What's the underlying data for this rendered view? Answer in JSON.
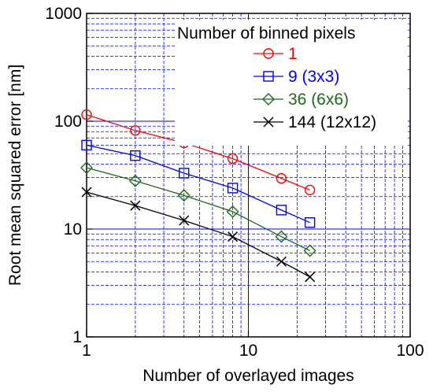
{
  "chart_data": {
    "type": "line",
    "xlabel": "Number of overlayed images",
    "ylabel": "Root mean squared error [nm]",
    "xscale": "log",
    "yscale": "log",
    "xlim": [
      1,
      100
    ],
    "ylim": [
      1,
      1000
    ],
    "x_ticks": [
      "1",
      "10",
      "100"
    ],
    "y_ticks": [
      "1",
      "10",
      "100",
      "1000"
    ],
    "grid": true,
    "grid_color": "#0000ff",
    "legend": {
      "title": "Number of binned pixels",
      "placement": "top-right"
    },
    "x": [
      1,
      2,
      4,
      8,
      16,
      24
    ],
    "series": [
      {
        "name": "1",
        "color": "#ff0000",
        "marker": "circle",
        "values": [
          115,
          82,
          63,
          45,
          29.5,
          23
        ]
      },
      {
        "name": "9 (3x3)",
        "color": "#0000ff",
        "marker": "square",
        "values": [
          60,
          48,
          33,
          24,
          15,
          11.5
        ]
      },
      {
        "name": "36 (6x6)",
        "color": "#1a6b1a",
        "marker": "diamond",
        "values": [
          37,
          28,
          20.5,
          14.5,
          8.5,
          6.3
        ]
      },
      {
        "name": "144 (12x12)",
        "color": "#000000",
        "marker": "x",
        "values": [
          22,
          16.5,
          12,
          8.5,
          5,
          3.6
        ]
      }
    ]
  }
}
